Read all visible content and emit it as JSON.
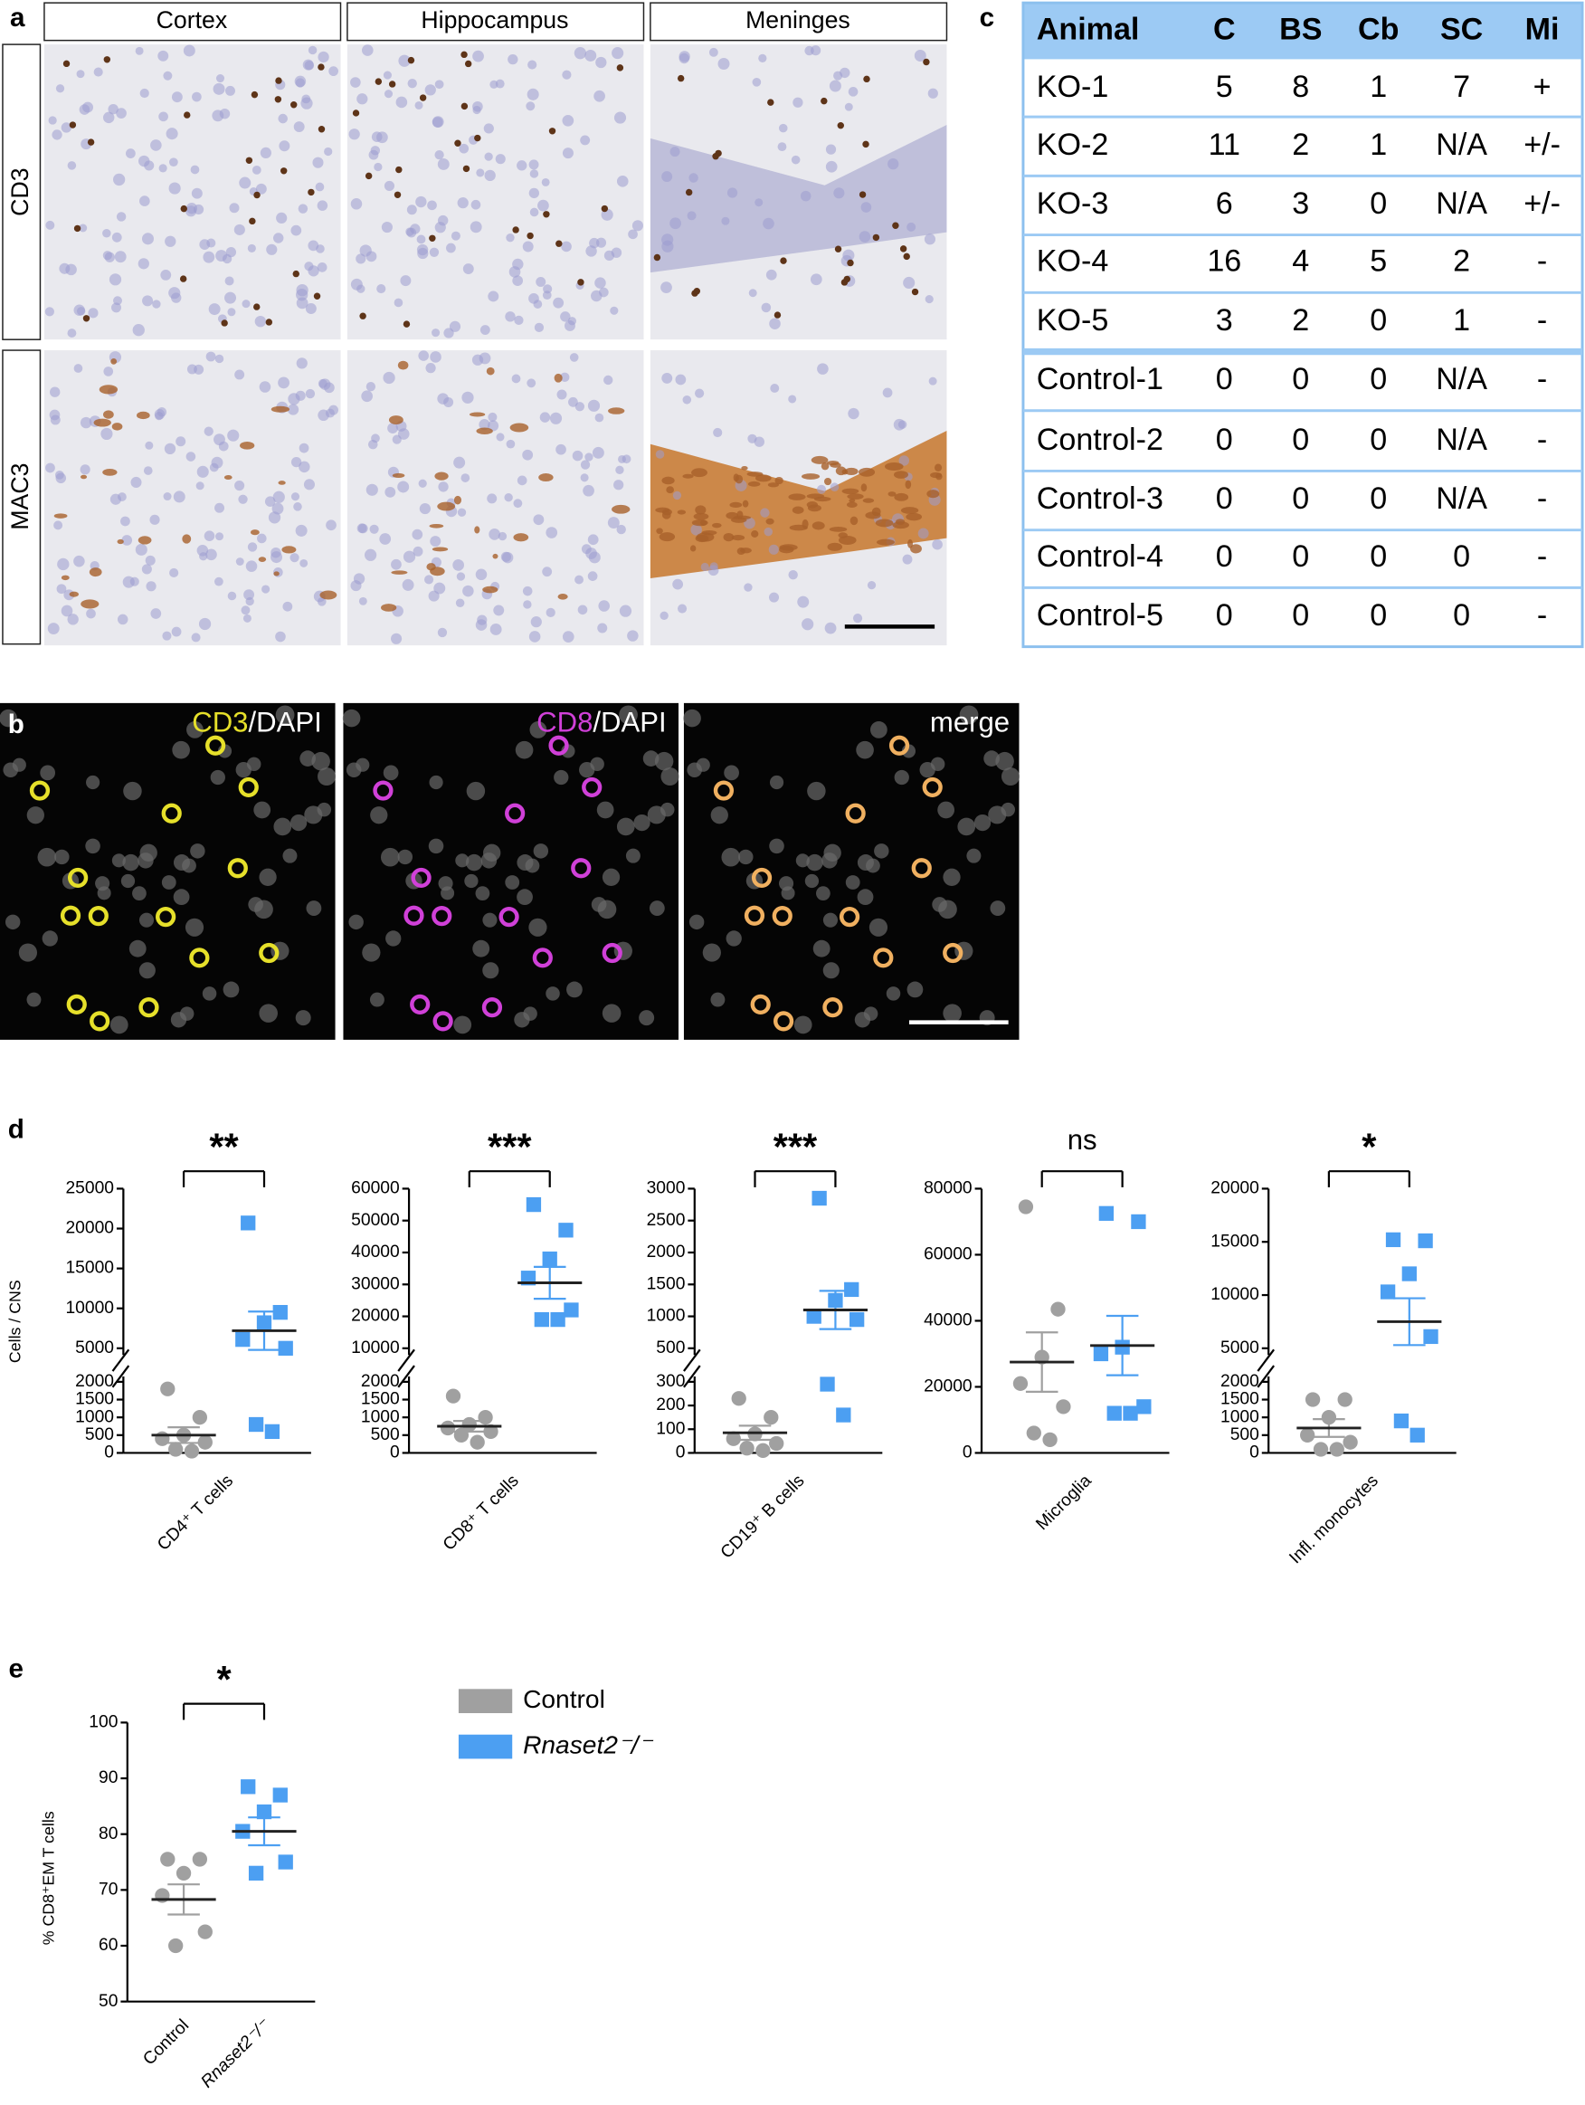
{
  "panel_labels": [
    "a",
    "b",
    "c",
    "d",
    "e"
  ],
  "panel_a": {
    "columns": [
      "Cortex",
      "Hippocampus",
      "Meninges"
    ],
    "rows": [
      "CD3",
      "MAC3"
    ]
  },
  "panel_b": {
    "labels": [
      {
        "marker": "CD3",
        "rest": "/DAPI"
      },
      {
        "marker": "CD8",
        "rest": "/DAPI"
      },
      {
        "marker": "merge",
        "rest": ""
      }
    ]
  },
  "table": {
    "header": [
      "Animal",
      "C",
      "BS",
      "Cb",
      "SC",
      "Mi"
    ],
    "rows": [
      [
        "KO-1",
        "5",
        "8",
        "1",
        "7",
        "+"
      ],
      [
        "KO-2",
        "11",
        "2",
        "1",
        "N/A",
        "+/-"
      ],
      [
        "KO-3",
        "6",
        "3",
        "0",
        "N/A",
        "+/-"
      ],
      [
        "KO-4",
        "16",
        "4",
        "5",
        "2",
        "-"
      ],
      [
        "KO-5",
        "3",
        "2",
        "0",
        "1",
        "-"
      ],
      [
        "Control-1",
        "0",
        "0",
        "0",
        "N/A",
        "-"
      ],
      [
        "Control-2",
        "0",
        "0",
        "0",
        "N/A",
        "-"
      ],
      [
        "Control-3",
        "0",
        "0",
        "0",
        "N/A",
        "-"
      ],
      [
        "Control-4",
        "0",
        "0",
        "0",
        "0",
        "-"
      ],
      [
        "Control-5",
        "0",
        "0",
        "0",
        "0",
        "-"
      ]
    ]
  },
  "chart_data": [
    {
      "type": "scatter",
      "significance": "**",
      "x_label": "CD4⁺ T cells",
      "y_label": "Cells / CNS",
      "ylim_lower": [
        0,
        2000
      ],
      "yticks_lower": [
        0,
        500,
        1000,
        1500,
        2000
      ],
      "ylim_upper": [
        5000,
        25000
      ],
      "yticks_upper": [
        5000,
        10000,
        15000,
        20000,
        25000
      ],
      "series": [
        {
          "color": "#a0a0a0",
          "values": [
            1800,
            1000,
            500,
            400,
            300,
            100,
            50
          ],
          "mean": 500,
          "sem": 220
        },
        {
          "color": "#4c9ff2",
          "values": [
            20700,
            9500,
            8200,
            6100,
            5000,
            800,
            600
          ],
          "mean": 7200,
          "sem": 2400
        }
      ]
    },
    {
      "type": "scatter",
      "significance": "***",
      "x_label": "CD8⁺ T cells",
      "ylim_lower": [
        0,
        2000
      ],
      "yticks_lower": [
        0,
        500,
        1000,
        1500,
        2000
      ],
      "ylim_upper": [
        10000,
        60000
      ],
      "yticks_upper": [
        10000,
        20000,
        30000,
        40000,
        50000,
        60000
      ],
      "series": [
        {
          "color": "#a0a0a0",
          "values": [
            1600,
            1000,
            800,
            700,
            600,
            500,
            300
          ],
          "mean": 750,
          "sem": 150
        },
        {
          "color": "#4c9ff2",
          "values": [
            55000,
            47000,
            38000,
            32000,
            22000,
            19000,
            19000
          ],
          "mean": 30500,
          "sem": 5000
        }
      ]
    },
    {
      "type": "scatter",
      "significance": "***",
      "x_label": "CD19⁺ B cells",
      "ylim_lower": [
        0,
        300
      ],
      "yticks_lower": [
        0,
        100,
        200,
        300
      ],
      "ylim_upper": [
        500,
        3000
      ],
      "yticks_upper": [
        500,
        1000,
        1500,
        2000,
        2500,
        3000
      ],
      "series": [
        {
          "color": "#a0a0a0",
          "values": [
            230,
            150,
            80,
            60,
            40,
            20,
            10
          ],
          "mean": 85,
          "sem": 30
        },
        {
          "color": "#4c9ff2",
          "values": [
            2850,
            1420,
            1250,
            1000,
            950,
            290,
            160
          ],
          "mean": 1100,
          "sem": 300
        }
      ]
    },
    {
      "type": "scatter",
      "significance": "ns",
      "x_label": "Microglia",
      "ylim": [
        0,
        80000
      ],
      "yticks": [
        0,
        20000,
        40000,
        60000,
        80000
      ],
      "series": [
        {
          "color": "#a0a0a0",
          "values": [
            74500,
            43500,
            29000,
            21000,
            14000,
            6000,
            4000
          ],
          "mean": 27500,
          "sem": 9000
        },
        {
          "color": "#4c9ff2",
          "values": [
            72500,
            70000,
            32000,
            30000,
            14000,
            12000,
            12000
          ],
          "mean": 32500,
          "sem": 9000
        }
      ]
    },
    {
      "type": "scatter",
      "significance": "*",
      "x_label": "Infl. monocytes",
      "ylim_lower": [
        0,
        2000
      ],
      "yticks_lower": [
        0,
        500,
        1000,
        1500,
        2000
      ],
      "ylim_upper": [
        5000,
        20000
      ],
      "yticks_upper": [
        5000,
        10000,
        15000,
        20000
      ],
      "series": [
        {
          "color": "#a0a0a0",
          "values": [
            1500,
            1500,
            1000,
            500,
            300,
            100,
            100
          ],
          "mean": 700,
          "sem": 250
        },
        {
          "color": "#4c9ff2",
          "values": [
            15200,
            15100,
            12000,
            10300,
            6100,
            900,
            500
          ],
          "mean": 7500,
          "sem": 2200
        }
      ]
    },
    {
      "type": "scatter",
      "significance": "*",
      "y_label": "% CD8⁺EM T cells",
      "categories": [
        "Control",
        "Rnaset2⁻/⁻"
      ],
      "ylim": [
        50,
        100
      ],
      "yticks": [
        50,
        60,
        70,
        80,
        90,
        100
      ],
      "series": [
        {
          "name": "Control",
          "color": "#a0a0a0",
          "values": [
            75.5,
            75.5,
            73,
            69,
            62.5,
            60
          ],
          "mean": 68.3,
          "sem": 2.7
        },
        {
          "name": "Rnaset2⁻/⁻",
          "color": "#4c9ff2",
          "values": [
            88.5,
            87,
            84,
            80.5,
            75,
            73
          ],
          "mean": 80.5,
          "sem": 2.5
        }
      ]
    }
  ]
}
